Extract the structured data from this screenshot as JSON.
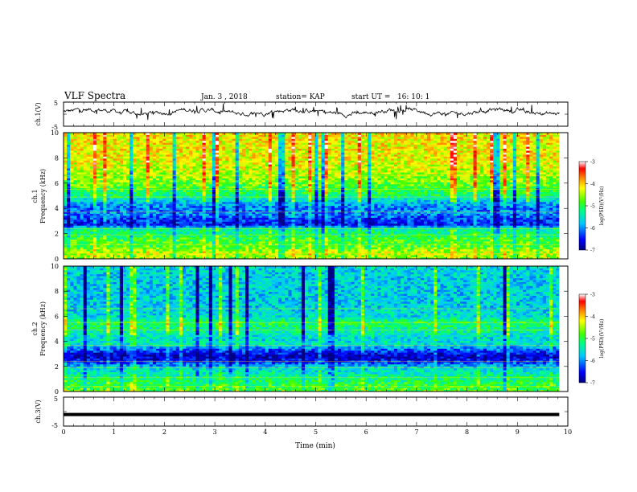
{
  "header": {
    "title": "VLF Spectra",
    "date": "Jan. 3 , 2018",
    "station": "station= KAP",
    "start": "start UT =   16: 10: 1"
  },
  "chart_data": [
    {
      "type": "line",
      "ylabel": "ch.1(V)",
      "ylim": [
        -5,
        5
      ],
      "yticks": [
        "5",
        "-5"
      ],
      "xlim": [
        0,
        10
      ],
      "baseline": 1.0,
      "line_color": "#000000"
    },
    {
      "type": "heatmap",
      "ylabel_top": "ch.1",
      "ylabel": "Frequency (kHz)",
      "ylim": [
        0,
        10
      ],
      "yticks": [
        "0",
        "2",
        "4",
        "6",
        "8",
        "10"
      ],
      "xlim": [
        0,
        9.83
      ],
      "colorbar": {
        "label": "log(PSD)(V²/Hz)",
        "range": [
          -7,
          -3
        ],
        "ticks": [
          "-3",
          "-4",
          "-5",
          "-6",
          "-7"
        ]
      },
      "level_by_freq_khz": [
        [
          0.0,
          -4.6
        ],
        [
          0.5,
          -4.4
        ],
        [
          1.0,
          -4.8
        ],
        [
          1.6,
          -4.9
        ],
        [
          2.0,
          -5.2
        ],
        [
          2.4,
          -5.3
        ],
        [
          2.7,
          -6.5
        ],
        [
          3.2,
          -6.3
        ],
        [
          3.6,
          -6.0
        ],
        [
          4.0,
          -6.1
        ],
        [
          4.5,
          -5.8
        ],
        [
          5.0,
          -5.2
        ],
        [
          6.0,
          -4.7
        ],
        [
          7.0,
          -4.4
        ],
        [
          8.0,
          -4.2
        ],
        [
          9.0,
          -4.2
        ],
        [
          10.0,
          -4.1
        ]
      ]
    },
    {
      "type": "heatmap",
      "ylabel_top": "ch.2",
      "ylabel": "Frequency (kHz)",
      "ylim": [
        0,
        10
      ],
      "yticks": [
        "0",
        "2",
        "4",
        "6",
        "8",
        "10"
      ],
      "xlim": [
        0,
        9.83
      ],
      "colorbar": {
        "label": "log(PSD)(V²/Hz)",
        "range": [
          -7,
          -3
        ],
        "ticks": [
          "-3",
          "-4",
          "-5",
          "-6",
          "-7"
        ]
      },
      "level_by_freq_khz": [
        [
          0.0,
          -4.8
        ],
        [
          0.6,
          -5.0
        ],
        [
          1.2,
          -5.3
        ],
        [
          2.0,
          -5.7
        ],
        [
          2.3,
          -6.3
        ],
        [
          2.8,
          -6.8
        ],
        [
          3.2,
          -6.4
        ],
        [
          3.8,
          -5.5
        ],
        [
          4.2,
          -5.6
        ],
        [
          5.0,
          -5.3
        ],
        [
          5.5,
          -5.0
        ],
        [
          6.0,
          -5.6
        ],
        [
          7.0,
          -5.7
        ],
        [
          8.0,
          -5.7
        ],
        [
          9.0,
          -5.7
        ],
        [
          10.0,
          -5.6
        ]
      ]
    },
    {
      "type": "line",
      "ylabel": "ch.3(V)",
      "ylim": [
        -5,
        5
      ],
      "yticks": [
        "5",
        "-5"
      ],
      "xlabel": "Time (min)",
      "xlim": [
        0,
        10
      ],
      "xticks": [
        "0",
        "1",
        "2",
        "3",
        "4",
        "5",
        "6",
        "7",
        "8",
        "9",
        "10"
      ],
      "constant_value": -1.0,
      "line_color": "#000000"
    }
  ]
}
